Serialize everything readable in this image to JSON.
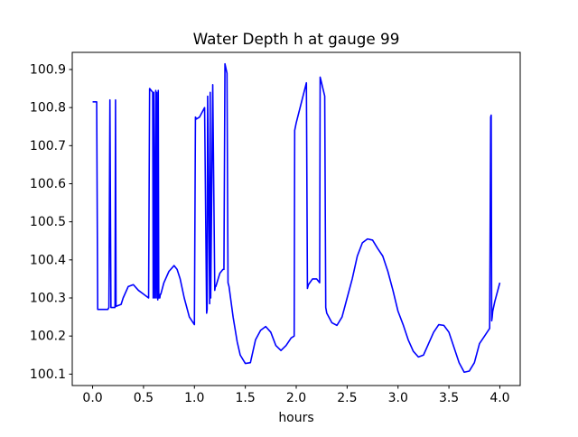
{
  "chart_data": {
    "type": "line",
    "title": "Water Depth h at gauge 99",
    "xlabel": "hours",
    "ylabel": "",
    "xlim": [
      -0.2,
      4.2
    ],
    "ylim": [
      100.07,
      100.945
    ],
    "xticks": [
      0.0,
      0.5,
      1.0,
      1.5,
      2.0,
      2.5,
      3.0,
      3.5,
      4.0
    ],
    "xtick_labels": [
      "0.0",
      "0.5",
      "1.0",
      "1.5",
      "2.0",
      "2.5",
      "3.0",
      "3.5",
      "4.0"
    ],
    "yticks": [
      100.1,
      100.2,
      100.3,
      100.4,
      100.5,
      100.6,
      100.7,
      100.8,
      100.9
    ],
    "ytick_labels": [
      "100.1",
      "100.2",
      "100.3",
      "100.4",
      "100.5",
      "100.6",
      "100.7",
      "100.8",
      "100.9"
    ],
    "grid": false,
    "legend": "none",
    "series": [
      {
        "color": "#0000ff",
        "x": [
          0.0,
          0.04,
          0.05,
          0.15,
          0.16,
          0.17,
          0.18,
          0.22,
          0.225,
          0.23,
          0.24,
          0.28,
          0.3,
          0.35,
          0.4,
          0.45,
          0.5,
          0.55,
          0.56,
          0.575,
          0.59,
          0.595,
          0.6,
          0.61,
          0.62,
          0.625,
          0.63,
          0.64,
          0.645,
          0.65,
          0.66,
          0.665,
          0.67,
          0.7,
          0.75,
          0.8,
          0.83,
          0.86,
          0.9,
          0.95,
          1.0,
          1.01,
          1.02,
          1.05,
          1.08,
          1.1,
          1.12,
          1.125,
          1.13,
          1.15,
          1.155,
          1.16,
          1.18,
          1.2,
          1.205,
          1.21,
          1.25,
          1.28,
          1.29,
          1.3,
          1.32,
          1.33,
          1.34,
          1.38,
          1.42,
          1.45,
          1.5,
          1.55,
          1.6,
          1.65,
          1.7,
          1.75,
          1.8,
          1.85,
          1.9,
          1.95,
          1.98,
          1.985,
          2.0,
          2.1,
          2.11,
          2.12,
          2.16,
          2.2,
          2.23,
          2.235,
          2.24,
          2.28,
          2.29,
          2.3,
          2.35,
          2.4,
          2.45,
          2.5,
          2.55,
          2.6,
          2.65,
          2.7,
          2.75,
          2.8,
          2.85,
          2.9,
          2.95,
          3.0,
          3.05,
          3.1,
          3.15,
          3.2,
          3.25,
          3.3,
          3.35,
          3.4,
          3.45,
          3.5,
          3.55,
          3.6,
          3.65,
          3.7,
          3.75,
          3.8,
          3.85,
          3.9,
          3.91,
          3.915,
          3.92,
          3.925,
          3.93,
          3.95,
          4.0
        ],
        "y": [
          100.815,
          100.815,
          100.27,
          100.27,
          100.275,
          100.82,
          100.275,
          100.275,
          100.82,
          100.278,
          100.279,
          100.283,
          100.3,
          100.33,
          100.335,
          100.32,
          100.31,
          100.3,
          100.85,
          100.845,
          100.84,
          100.3,
          100.84,
          100.3,
          100.845,
          100.3,
          100.84,
          100.295,
          100.845,
          100.3,
          100.3,
          100.31,
          100.31,
          100.34,
          100.37,
          100.385,
          100.375,
          100.35,
          100.3,
          100.25,
          100.23,
          100.775,
          100.77,
          100.775,
          100.79,
          100.8,
          100.26,
          100.27,
          100.83,
          100.285,
          100.84,
          100.3,
          100.86,
          100.32,
          100.33,
          100.33,
          100.365,
          100.375,
          100.375,
          100.915,
          100.89,
          100.34,
          100.33,
          100.25,
          100.185,
          100.15,
          100.128,
          100.13,
          100.19,
          100.215,
          100.225,
          100.21,
          100.175,
          100.162,
          100.175,
          100.195,
          100.2,
          100.74,
          100.76,
          100.865,
          100.325,
          100.335,
          100.35,
          100.35,
          100.34,
          100.88,
          100.875,
          100.83,
          100.275,
          100.26,
          100.235,
          100.228,
          100.25,
          100.3,
          100.35,
          100.41,
          100.445,
          100.455,
          100.452,
          100.43,
          100.41,
          100.37,
          100.32,
          100.265,
          100.23,
          100.19,
          100.16,
          100.145,
          100.15,
          100.18,
          100.21,
          100.23,
          100.228,
          100.21,
          100.17,
          100.13,
          100.105,
          100.108,
          100.13,
          100.18,
          100.2,
          100.22,
          100.775,
          100.78,
          100.24,
          100.25,
          100.265,
          100.29,
          100.34
        ]
      }
    ]
  }
}
